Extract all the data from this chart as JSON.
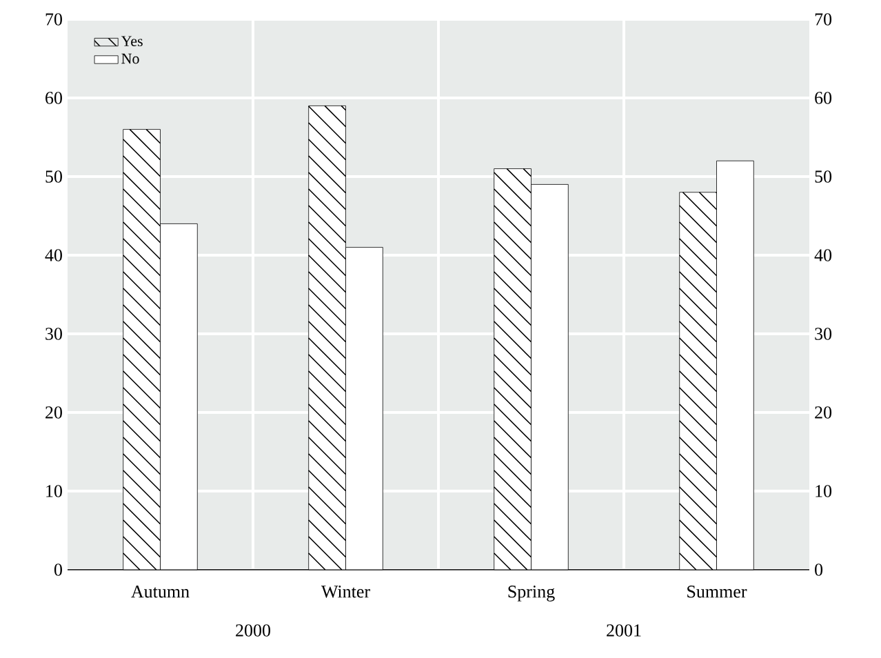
{
  "chart_data": {
    "type": "bar",
    "categories": [
      "Autumn",
      "Winter",
      "Spring",
      "Summer"
    ],
    "series": [
      {
        "name": "Yes",
        "color": "#ffffff",
        "values": [
          56,
          59,
          51,
          48
        ]
      },
      {
        "name": "No",
        "color": "#ffffff",
        "values": [
          44,
          41,
          49,
          52
        ]
      }
    ],
    "ylim": [
      0,
      70
    ],
    "yticks": [
      0,
      10,
      20,
      30,
      40,
      50,
      60,
      70
    ],
    "y2lim": [
      0,
      70
    ],
    "y2ticks": [
      0,
      10,
      20,
      30,
      40,
      50,
      60,
      70
    ],
    "annotations": [
      "2000",
      "2001"
    ],
    "grid": true,
    "legend": "top left"
  }
}
